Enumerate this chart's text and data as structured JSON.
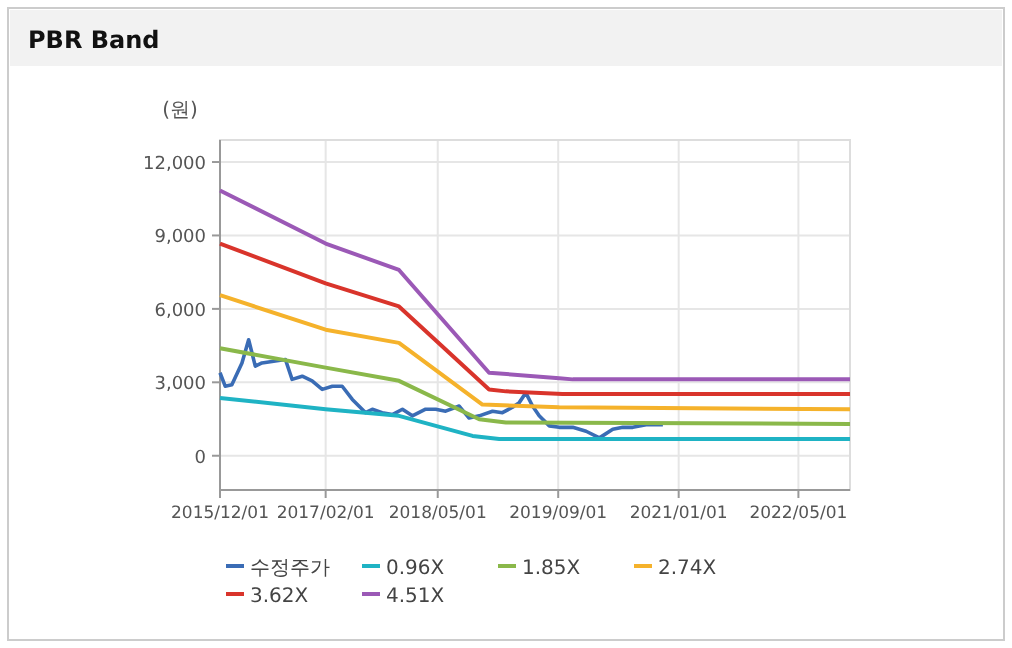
{
  "chart_data": {
    "type": "line",
    "title": "PBR Band",
    "ylabel": "(원)",
    "xlim": [
      "2015-12-01",
      "2022-11-26"
    ],
    "xticks": [
      {
        "value": "2015-12-01",
        "label": "2015/12/01"
      },
      {
        "value": "2017-02-01",
        "label": "2017/02/01"
      },
      {
        "value": "2018-05-01",
        "label": "2018/05/01"
      },
      {
        "value": "2019-09-01",
        "label": "2019/09/01"
      },
      {
        "value": "2021-01-01",
        "label": "2021/01/01"
      },
      {
        "value": "2022-05-01",
        "label": "2022/05/01"
      }
    ],
    "ylim": [
      -1400,
      12900
    ],
    "yticks": [
      {
        "value": 0,
        "label": "0"
      },
      {
        "value": 3000,
        "label": "3,000"
      },
      {
        "value": 6000,
        "label": "6,000"
      },
      {
        "value": 9000,
        "label": "9,000"
      },
      {
        "value": 12000,
        "label": "12,000"
      }
    ],
    "grid": true,
    "legend": "bottom",
    "marker": "none",
    "line_style": "solid",
    "series": [
      {
        "name": "수정주가",
        "color": "#3a6cb5",
        "x": [
          "2015-12-01",
          "2015-12-22",
          "2016-01-18",
          "2016-02-28",
          "2016-03-26",
          "2016-04-22",
          "2016-05-19",
          "2016-08-22",
          "2016-09-18",
          "2016-10-29",
          "2016-12-08",
          "2017-01-18",
          "2017-02-28",
          "2017-04-09",
          "2017-05-20",
          "2017-07-13",
          "2017-08-09",
          "2017-09-18",
          "2017-10-29",
          "2017-12-09",
          "2018-01-18",
          "2018-03-13",
          "2018-04-23",
          "2018-06-02",
          "2018-07-27",
          "2018-09-05",
          "2018-10-16",
          "2018-12-09",
          "2019-01-18",
          "2019-02-28",
          "2019-03-27",
          "2019-04-23",
          "2019-05-20",
          "2019-06-16",
          "2019-07-27",
          "2019-09-05",
          "2019-10-30",
          "2019-12-23",
          "2020-02-15",
          "2020-04-09",
          "2020-05-20",
          "2020-06-29",
          "2020-08-22",
          "2020-10-29"
        ],
        "values": [
          3390,
          2840,
          2900,
          3790,
          4740,
          3660,
          3790,
          3930,
          3120,
          3250,
          3060,
          2710,
          2840,
          2840,
          2300,
          1760,
          1900,
          1760,
          1680,
          1900,
          1630,
          1900,
          1900,
          1820,
          2030,
          1540,
          1630,
          1820,
          1760,
          1980,
          2170,
          2570,
          2030,
          1630,
          1220,
          1160,
          1160,
          1000,
          730,
          1080,
          1160,
          1160,
          1270,
          1270
        ]
      },
      {
        "name": "0.96X",
        "color": "#1fb3c4",
        "x": [
          "2015-12-01",
          "2017-02-01",
          "2017-11-25",
          "2018-09-19",
          "2019-01-05",
          "2022-11-26"
        ],
        "values": [
          2360,
          1900,
          1630,
          810,
          680,
          680
        ]
      },
      {
        "name": "1.85X",
        "color": "#8ab84a",
        "x": [
          "2015-12-01",
          "2017-02-01",
          "2017-11-25",
          "2018-10-16",
          "2019-02-01",
          "2022-11-26"
        ],
        "values": [
          4390,
          3600,
          3060,
          1490,
          1360,
          1300
        ]
      },
      {
        "name": "2.74X",
        "color": "#f5b22b",
        "x": [
          "2015-12-01",
          "2017-02-01",
          "2017-11-25",
          "2018-10-29",
          "2019-09-05",
          "2022-11-26"
        ],
        "values": [
          6560,
          5150,
          4610,
          2090,
          1980,
          1900
        ]
      },
      {
        "name": "3.62X",
        "color": "#d9342b",
        "x": [
          "2015-12-01",
          "2017-02-01",
          "2017-11-25",
          "2018-11-25",
          "2019-02-01",
          "2019-09-18",
          "2022-11-26"
        ],
        "values": [
          8670,
          7040,
          6100,
          2710,
          2630,
          2520,
          2520
        ]
      },
      {
        "name": "4.51X",
        "color": "#9b59b6",
        "x": [
          "2015-12-01",
          "2017-02-01",
          "2017-11-25",
          "2018-11-25",
          "2019-09-05",
          "2019-10-30",
          "2022-11-26"
        ],
        "values": [
          10840,
          8670,
          7590,
          3390,
          3170,
          3120,
          3120
        ]
      }
    ]
  }
}
